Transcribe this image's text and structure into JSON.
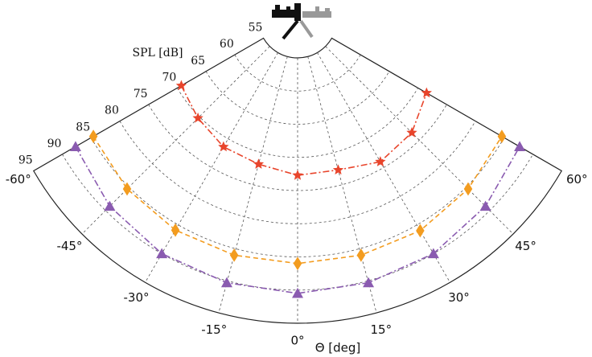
{
  "chart_data": {
    "type": "polar",
    "radial_label": "SPL [dB]",
    "angular_label": "Θ [deg]",
    "xlim": [
      -60,
      60
    ],
    "xticks": [
      {
        "value": -60,
        "label": "-60°"
      },
      {
        "value": -45,
        "label": "-45°"
      },
      {
        "value": -30,
        "label": "-30°"
      },
      {
        "value": -15,
        "label": "-15°"
      },
      {
        "value": 0,
        "label": "0°"
      },
      {
        "value": 15,
        "label": "15°"
      },
      {
        "value": 30,
        "label": "30°"
      },
      {
        "value": 45,
        "label": "45°"
      },
      {
        "value": 60,
        "label": "60°"
      }
    ],
    "ylim": [
      55,
      95
    ],
    "yticks": [
      55,
      60,
      65,
      70,
      75,
      80,
      85,
      90,
      95
    ],
    "grid": true,
    "x": [
      -60,
      -45,
      -30,
      -15,
      0,
      15,
      30,
      45,
      60
    ],
    "series": [
      {
        "color": "#e8452c",
        "marker": "star",
        "linestyle": "dashdot",
        "values": [
          69.3,
          70.3,
          71.4,
          71.8,
          72.7,
          72.7,
          74.0,
          73.4,
          71.5
        ]
      },
      {
        "color": "#f39c1f",
        "marker": "diamond",
        "linestyle": "dashed",
        "values": [
          84.6,
          85.4,
          85.9,
          86.0,
          86.0,
          86.0,
          86.0,
          85.4,
          84.6
        ]
      },
      {
        "color": "#8a5bb0",
        "marker": "triangle",
        "linestyle": "dashdot",
        "values": [
          87.7,
          89.1,
          90.0,
          90.3,
          90.5,
          90.3,
          90.0,
          89.1,
          87.7
        ]
      }
    ]
  }
}
